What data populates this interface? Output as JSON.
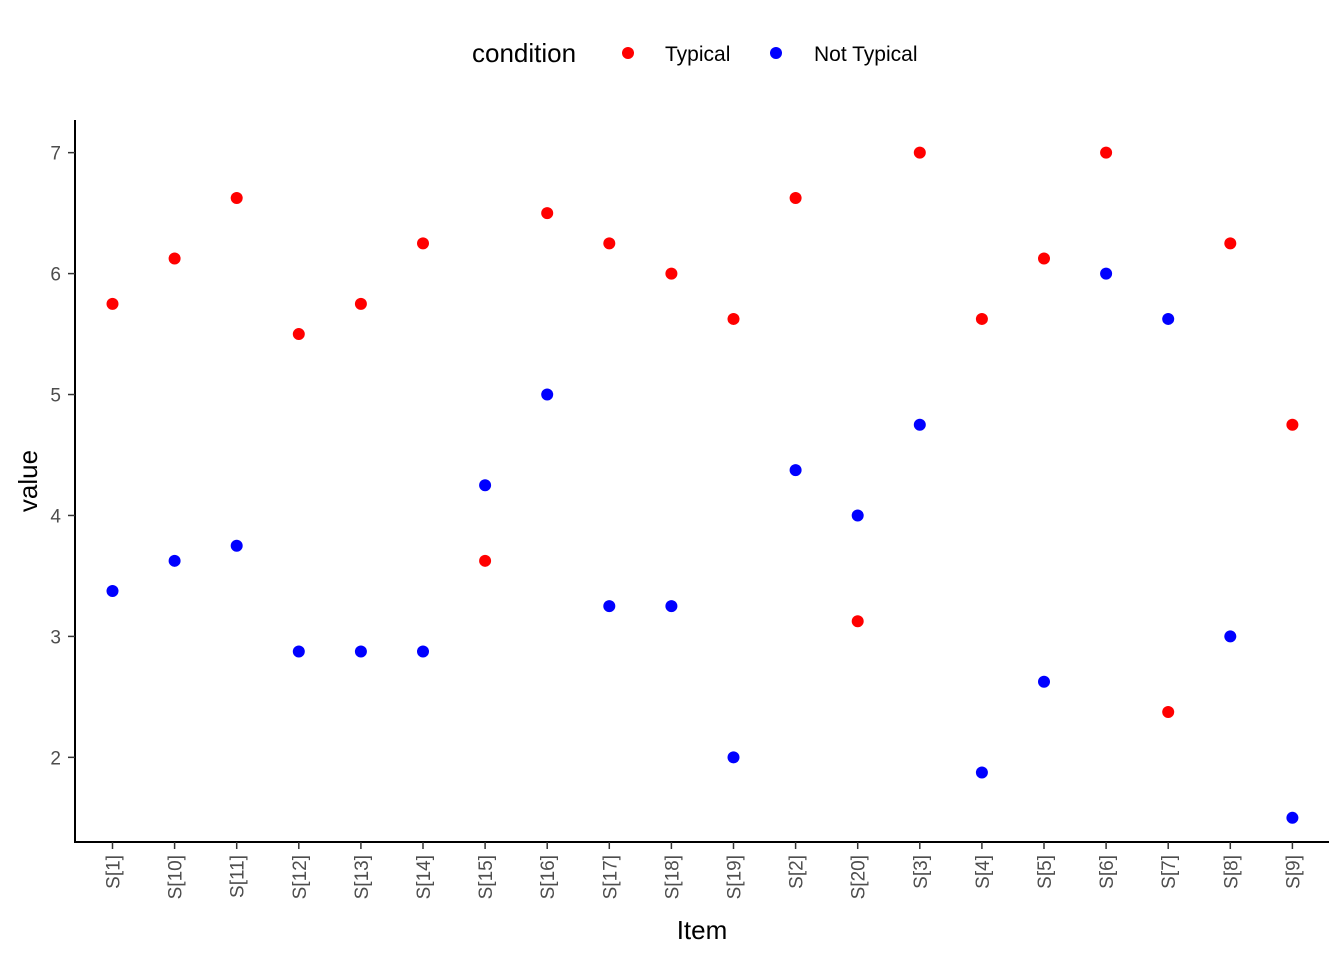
{
  "chart_data": {
    "type": "scatter",
    "xlabel": "Item",
    "ylabel": "value",
    "legend": {
      "title": "condition",
      "position": "top"
    },
    "categories": [
      "S[1]",
      "S[10]",
      "S[11]",
      "S[12]",
      "S[13]",
      "S[14]",
      "S[15]",
      "S[16]",
      "S[17]",
      "S[18]",
      "S[19]",
      "S[2]",
      "S[20]",
      "S[3]",
      "S[4]",
      "S[5]",
      "S[6]",
      "S[7]",
      "S[8]",
      "S[9]"
    ],
    "ylim": [
      1.3,
      7.27
    ],
    "yticks": [
      2,
      3,
      4,
      5,
      6,
      7
    ],
    "grid": false,
    "series": [
      {
        "name": "Typical",
        "color": "#ff0000",
        "values": [
          5.75,
          6.125,
          6.625,
          5.5,
          5.75,
          6.25,
          3.625,
          6.5,
          6.25,
          6.0,
          5.625,
          6.625,
          3.125,
          7.0,
          5.625,
          6.125,
          7.0,
          2.375,
          6.25,
          4.75
        ]
      },
      {
        "name": "Not Typical",
        "color": "#0000ff",
        "values": [
          3.375,
          3.625,
          3.75,
          2.875,
          2.875,
          2.875,
          4.25,
          5.0,
          3.25,
          3.25,
          2.0,
          4.375,
          4.0,
          4.75,
          1.875,
          2.625,
          6.0,
          5.625,
          3.0,
          1.5
        ]
      }
    ]
  }
}
